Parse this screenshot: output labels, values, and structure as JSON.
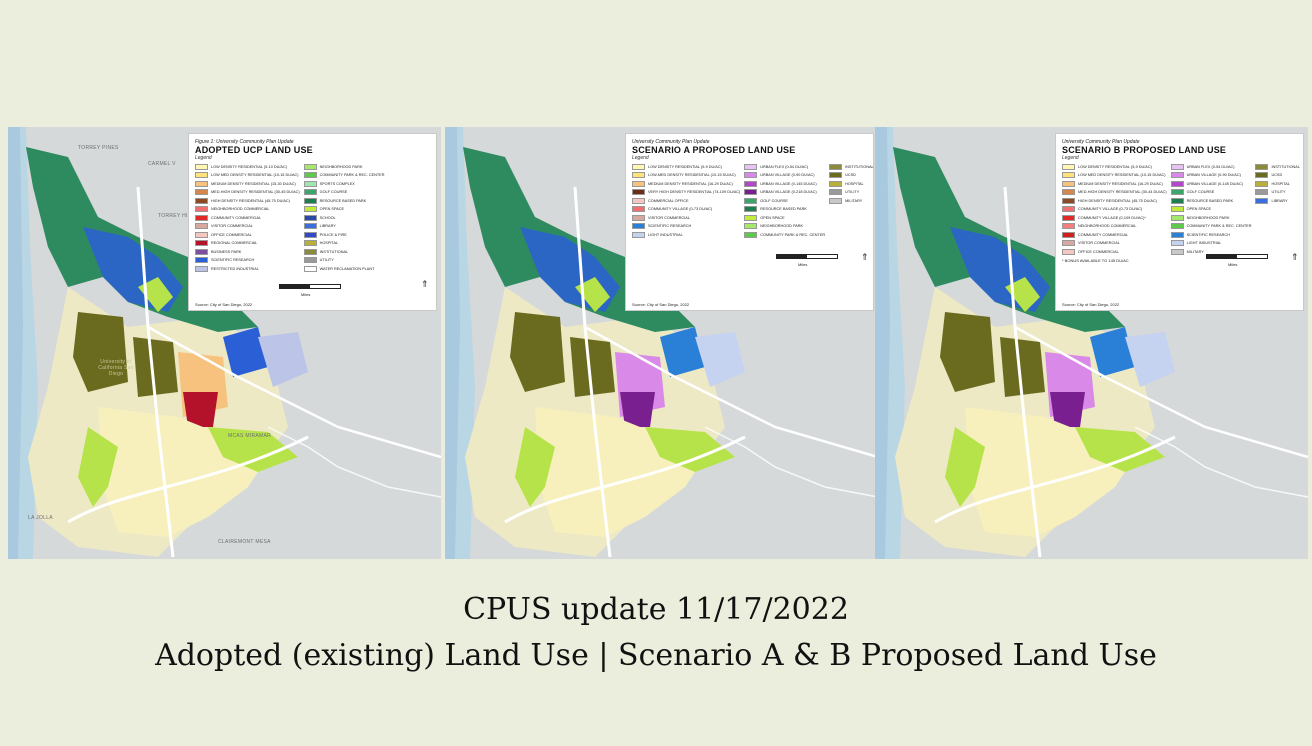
{
  "maps": [
    {
      "figure_label": "Figure 1: University Community Plan Update",
      "title": "ADOPTED UCP LAND USE",
      "legend_label": "Legend",
      "legend_col1": [
        {
          "label": "LOW DENSITY RESIDENTIAL (5-10 DU/AC)",
          "color": "#fff7b3"
        },
        {
          "label": "LOW MED DENSITY RESIDENTIAL (10-15 DU/AC)",
          "color": "#ffe27a"
        },
        {
          "label": "MEDIUM DENSITY RESIDENTIAL (15-30 DU/AC)",
          "color": "#f6c27d"
        },
        {
          "label": "MED-HIGH DENSITY RESIDENTIAL (30-45 DU/AC)",
          "color": "#d8874a"
        },
        {
          "label": "HIGH DENSITY RESIDENTIAL (45-75 DU/AC)",
          "color": "#8b4a23"
        },
        {
          "label": "NEIGHBORHOOD COMMERCIAL",
          "color": "#f36f6f"
        },
        {
          "label": "COMMUNITY COMMERCIAL",
          "color": "#e02a2a"
        },
        {
          "label": "VISITOR COMMERCIAL",
          "color": "#d7a8a0"
        },
        {
          "label": "OFFICE COMMERCIAL",
          "color": "#f4c7c3"
        },
        {
          "label": "REGIONAL COMMERCIAL",
          "color": "#b3122a"
        },
        {
          "label": "BUSINESS PARK",
          "color": "#7d4fa0"
        },
        {
          "label": "SCIENTIFIC RESEARCH",
          "color": "#2a5fd6"
        },
        {
          "label": "RESTRICTED INDUSTRIAL",
          "color": "#bcc5e8"
        }
      ],
      "legend_col2": [
        {
          "label": "NEIGHBORHOOD PARK",
          "color": "#a6e86b"
        },
        {
          "label": "COMMUNITY PARK & REC. CENTER",
          "color": "#5ec94a"
        },
        {
          "label": "SPORTS COMPLEX",
          "color": "#9fe6b0"
        },
        {
          "label": "GOLF COURSE",
          "color": "#3aa66b"
        },
        {
          "label": "RESOURCE BASED PARK",
          "color": "#1f7d4f"
        },
        {
          "label": "OPEN SPACE",
          "color": "#c3ec3a"
        },
        {
          "label": "SCHOOL",
          "color": "#2b4aa6"
        },
        {
          "label": "LIBRARY",
          "color": "#3b6fe0"
        },
        {
          "label": "POLICE & FIRE",
          "color": "#3348c8"
        },
        {
          "label": "HOSPITAL",
          "color": "#b8b039"
        },
        {
          "label": "INSTITUTIONAL",
          "color": "#8a8a3a"
        },
        {
          "label": "UTILITY",
          "color": "#9a9a9a"
        },
        {
          "label": "WATER RECLAMATION PLANT",
          "color": "#ffffff"
        }
      ],
      "legend_col3": [],
      "note": "",
      "source": "Source: City of San Diego, 2022",
      "scale_label": "Miles",
      "place_labels": [
        "TORREY PINES",
        "CARMEL V",
        "TORREY HILL",
        "University of California San Diego",
        "MCAS MIRAMAR",
        "LA JOLLA",
        "CLAIREMONT MESA"
      ]
    },
    {
      "figure_label": "University Community Plan Update",
      "title": "SCENARIO A PROPOSED LAND USE",
      "legend_label": "Legend",
      "legend_col1": [
        {
          "label": "LOW DENSITY RESIDENTIAL (5-9 DU/AC)",
          "color": "#fff7b3"
        },
        {
          "label": "LOW-MED DENSITY RESIDENTIAL (10-15 DU/AC)",
          "color": "#ffe27a"
        },
        {
          "label": "MEDIUM DENSITY RESIDENTIAL (16-29 DU/AC)",
          "color": "#f6c27d"
        },
        {
          "label": "VERY HIGH DENSITY RESIDENTIAL (74-109 DU/AC)",
          "color": "#6a2e16"
        },
        {
          "label": "COMMERCIAL OFFICE",
          "color": "#f4c7c3"
        },
        {
          "label": "COMMUNITY VILLAGE (0-73 DU/AC)",
          "color": "#f36f6f"
        },
        {
          "label": "VISITOR COMMERCIAL",
          "color": "#d7a8a0"
        },
        {
          "label": "SCIENTIFIC RESEARCH",
          "color": "#2a7fd6"
        },
        {
          "label": "LIGHT INDUSTRIAL",
          "color": "#c5d2f0"
        }
      ],
      "legend_col2": [
        {
          "label": "URBAN FLEX (0-54 DU/AC)",
          "color": "#e6c3f0"
        },
        {
          "label": "URBAN VILLAGE (0-90 DU/AC)",
          "color": "#d98ae8"
        },
        {
          "label": "URBAN VILLAGE (0-145 DU/AC)",
          "color": "#b347c9"
        },
        {
          "label": "URBAN VILLAGE (0-218 DU/AC)",
          "color": "#7a1f8f"
        },
        {
          "label": "GOLF COURSE",
          "color": "#3aa66b"
        },
        {
          "label": "RESOURCE BASED PARK",
          "color": "#1f7d4f"
        },
        {
          "label": "OPEN SPACE",
          "color": "#c3ec3a"
        },
        {
          "label": "NEIGHBORHOOD PARK",
          "color": "#a6e86b"
        },
        {
          "label": "COMMUNITY PARK & REC. CENTER",
          "color": "#5ec94a"
        }
      ],
      "legend_col3": [
        {
          "label": "INSTITUTIONAL",
          "color": "#8a8a3a"
        },
        {
          "label": "UCSD",
          "color": "#6b6b20"
        },
        {
          "label": "HOSPITAL",
          "color": "#b8b039"
        },
        {
          "label": "UTILITY",
          "color": "#9a9a9a"
        },
        {
          "label": "MILITARY",
          "color": "#c8c8c8"
        }
      ],
      "note": "",
      "source": "Source: City of San Diego, 2022",
      "scale_label": "Miles",
      "place_labels": []
    },
    {
      "figure_label": "University Community Plan Update",
      "title": "SCENARIO B PROPOSED LAND USE",
      "legend_label": "Legend",
      "legend_col1": [
        {
          "label": "LOW DENSITY RESIDENTIAL (5-9 DU/AC)",
          "color": "#fff7b3"
        },
        {
          "label": "LOW MED DENSITY RESIDENTIAL (10-15 DU/AC)",
          "color": "#ffe27a"
        },
        {
          "label": "MEDIUM DENSITY RESIDENTIAL (16-29 DU/AC)",
          "color": "#f6c27d"
        },
        {
          "label": "MED-HIGH DENSITY RESIDENTIAL (30-44 DU/AC)",
          "color": "#d8874a"
        },
        {
          "label": "HIGH DENSITY RESIDENTIAL (45-75 DU/AC)",
          "color": "#8b4a23"
        },
        {
          "label": "COMMUNITY VILLAGE (0-73 DU/AC)",
          "color": "#f36f6f"
        },
        {
          "label": "COMMUNITY VILLAGE (0-109 DU/AC)*",
          "color": "#e02a2a"
        },
        {
          "label": "NEIGHBORHOOD COMMERCIAL",
          "color": "#f57f7f"
        },
        {
          "label": "COMMUNITY COMMERCIAL",
          "color": "#d11f1f"
        },
        {
          "label": "VISITOR COMMERCIAL",
          "color": "#d7a8a0"
        },
        {
          "label": "OFFICE COMMERCIAL",
          "color": "#f4c7c3"
        }
      ],
      "legend_col2": [
        {
          "label": "URBAN FLEX (0-54 DU/AC)",
          "color": "#e6c3f0"
        },
        {
          "label": "URBAN VILLAGE (0-90 DU/AC)",
          "color": "#d98ae8"
        },
        {
          "label": "URBAN VILLAGE (0-145 DU/AC)",
          "color": "#b347c9"
        },
        {
          "label": "GOLF COURSE",
          "color": "#3aa66b"
        },
        {
          "label": "RESOURCE BASED PARK",
          "color": "#1f7d4f"
        },
        {
          "label": "OPEN SPACE",
          "color": "#c3ec3a"
        },
        {
          "label": "NEIGHBORHOOD PARK",
          "color": "#a6e86b"
        },
        {
          "label": "COMMUNITY PARK & REC. CENTER",
          "color": "#5ec94a"
        },
        {
          "label": "SCIENTIFIC RESEARCH",
          "color": "#2a7fd6"
        },
        {
          "label": "LIGHT INDUSTRIAL",
          "color": "#c5d2f0"
        },
        {
          "label": "MILITARY",
          "color": "#c8c8c8"
        }
      ],
      "legend_col3": [
        {
          "label": "INSTITUTIONAL",
          "color": "#8a8a3a"
        },
        {
          "label": "UCSD",
          "color": "#6b6b20"
        },
        {
          "label": "HOSPITAL",
          "color": "#b8b039"
        },
        {
          "label": "UTILITY",
          "color": "#9a9a9a"
        },
        {
          "label": "LIBRARY",
          "color": "#3b6fe0"
        }
      ],
      "note": "* BONUS AVAILABLE TO 145 DU/AC",
      "source": "Source: City of San Diego, 2022",
      "scale_label": "Miles",
      "place_labels": []
    }
  ],
  "caption": {
    "line1": "CPUS update 11/17/2022",
    "line2": "Adopted (existing) Land Use  |  Scenario A & B Proposed Land Use"
  }
}
